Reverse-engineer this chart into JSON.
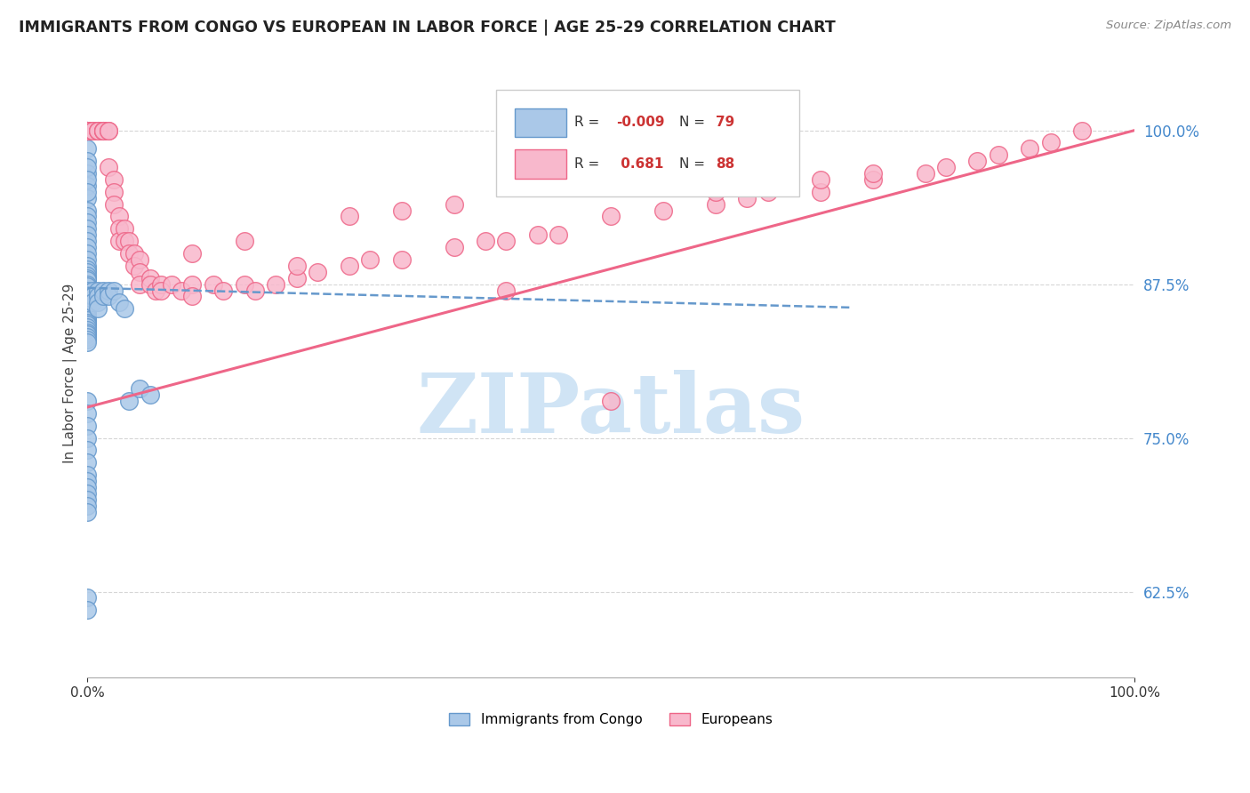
{
  "title": "IMMIGRANTS FROM CONGO VS EUROPEAN IN LABOR FORCE | AGE 25-29 CORRELATION CHART",
  "source": "Source: ZipAtlas.com",
  "ylabel": "In Labor Force | Age 25-29",
  "xlim": [
    0.0,
    1.0
  ],
  "ylim": [
    0.555,
    1.05
  ],
  "legend_entry1": {
    "color": "#7ab0dc",
    "R": "-0.009",
    "N": "79",
    "label": "Immigrants from Congo"
  },
  "legend_entry2": {
    "color": "#f07090",
    "R": "0.681",
    "N": "88",
    "label": "Europeans"
  },
  "blue_scatter_x": [
    0.0,
    0.0,
    0.0,
    0.0,
    0.0,
    0.0,
    0.0,
    0.0,
    0.0,
    0.0,
    0.0,
    0.0,
    0.0,
    0.0,
    0.0,
    0.0,
    0.0,
    0.0,
    0.0,
    0.0,
    0.0,
    0.0,
    0.0,
    0.0,
    0.0,
    0.0,
    0.0,
    0.0,
    0.0,
    0.0,
    0.0,
    0.0,
    0.0,
    0.0,
    0.0,
    0.0,
    0.0,
    0.0,
    0.0,
    0.0,
    0.0,
    0.0,
    0.0,
    0.0,
    0.005,
    0.005,
    0.005,
    0.01,
    0.01,
    0.01,
    0.01,
    0.015,
    0.015,
    0.02,
    0.02,
    0.025,
    0.03,
    0.035,
    0.04,
    0.05,
    0.06,
    0.0,
    0.0,
    0.0,
    0.0,
    0.0,
    0.0,
    0.0,
    0.0,
    0.0,
    0.0,
    0.0,
    0.0,
    0.0,
    0.0,
    0.0,
    0.0,
    0.0,
    0.0
  ],
  "blue_scatter_y": [
    1.0,
    0.985,
    0.975,
    0.965,
    0.955,
    0.945,
    0.935,
    0.93,
    0.925,
    0.92,
    0.915,
    0.91,
    0.905,
    0.9,
    0.895,
    0.89,
    0.887,
    0.885,
    0.882,
    0.88,
    0.878,
    0.875,
    0.873,
    0.87,
    0.868,
    0.865,
    0.862,
    0.86,
    0.858,
    0.856,
    0.854,
    0.852,
    0.85,
    0.848,
    0.846,
    0.844,
    0.842,
    0.84,
    0.838,
    0.836,
    0.834,
    0.832,
    0.83,
    0.828,
    0.87,
    0.865,
    0.86,
    0.87,
    0.865,
    0.86,
    0.855,
    0.87,
    0.865,
    0.87,
    0.865,
    0.87,
    0.86,
    0.855,
    0.78,
    0.79,
    0.785,
    0.97,
    0.96,
    0.95,
    0.78,
    0.77,
    0.76,
    0.75,
    0.74,
    0.73,
    0.72,
    0.715,
    0.71,
    0.705,
    0.7,
    0.695,
    0.69,
    0.62,
    0.61
  ],
  "pink_scatter_x": [
    0.0,
    0.0,
    0.0,
    0.0,
    0.0,
    0.0,
    0.0,
    0.0,
    0.0,
    0.0,
    0.0,
    0.005,
    0.005,
    0.01,
    0.01,
    0.01,
    0.015,
    0.015,
    0.015,
    0.015,
    0.02,
    0.02,
    0.02,
    0.025,
    0.025,
    0.025,
    0.03,
    0.03,
    0.03,
    0.035,
    0.035,
    0.04,
    0.04,
    0.045,
    0.045,
    0.05,
    0.05,
    0.05,
    0.06,
    0.06,
    0.065,
    0.07,
    0.07,
    0.08,
    0.09,
    0.1,
    0.1,
    0.12,
    0.13,
    0.15,
    0.16,
    0.18,
    0.2,
    0.22,
    0.25,
    0.27,
    0.3,
    0.35,
    0.38,
    0.4,
    0.43,
    0.45,
    0.5,
    0.55,
    0.6,
    0.63,
    0.65,
    0.7,
    0.75,
    0.8,
    0.82,
    0.85,
    0.87,
    0.9,
    0.92,
    0.95,
    0.5,
    0.4,
    0.2,
    0.15,
    0.1,
    0.25,
    0.3,
    0.35,
    0.6,
    0.65,
    0.7,
    0.75
  ],
  "pink_scatter_y": [
    1.0,
    1.0,
    1.0,
    1.0,
    1.0,
    1.0,
    1.0,
    1.0,
    1.0,
    1.0,
    1.0,
    1.0,
    1.0,
    1.0,
    1.0,
    1.0,
    1.0,
    1.0,
    1.0,
    1.0,
    1.0,
    1.0,
    0.97,
    0.96,
    0.95,
    0.94,
    0.93,
    0.92,
    0.91,
    0.92,
    0.91,
    0.91,
    0.9,
    0.9,
    0.89,
    0.895,
    0.885,
    0.875,
    0.88,
    0.875,
    0.87,
    0.875,
    0.87,
    0.875,
    0.87,
    0.875,
    0.865,
    0.875,
    0.87,
    0.875,
    0.87,
    0.875,
    0.88,
    0.885,
    0.89,
    0.895,
    0.895,
    0.905,
    0.91,
    0.91,
    0.915,
    0.915,
    0.93,
    0.935,
    0.94,
    0.945,
    0.95,
    0.95,
    0.96,
    0.965,
    0.97,
    0.975,
    0.98,
    0.985,
    0.99,
    1.0,
    0.78,
    0.87,
    0.89,
    0.91,
    0.9,
    0.93,
    0.935,
    0.94,
    0.95,
    0.955,
    0.96,
    0.965
  ],
  "blue_line_x": [
    0.0,
    0.73
  ],
  "blue_line_y": [
    0.872,
    0.856
  ],
  "pink_line_x": [
    0.0,
    1.0
  ],
  "pink_line_y": [
    0.775,
    1.0
  ],
  "yticks": [
    0.625,
    0.75,
    0.875,
    1.0
  ],
  "xticks": [
    0.0,
    1.0
  ],
  "grid_color": "#cccccc",
  "blue_color": "#6699cc",
  "pink_color": "#ee6688",
  "blue_fill": "#aac8e8",
  "pink_fill": "#f8b8cc",
  "background_color": "#ffffff",
  "watermark": "ZIPatlas",
  "watermark_color": "#d0e4f5"
}
